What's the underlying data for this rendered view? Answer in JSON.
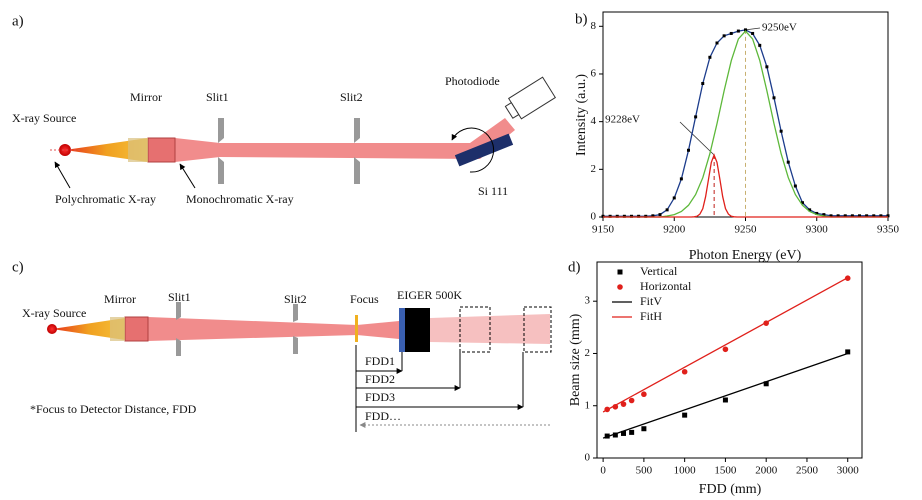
{
  "diagram": {
    "a": {
      "panel_label": "a)",
      "source": "X-ray Source",
      "mirror": "Mirror",
      "slit1": "Slit1",
      "slit2": "Slit2",
      "photodiode": "Photodiode",
      "poly": "Polychromatic X-ray",
      "mono": "Monochromatic X-ray",
      "crystal": "Si 111"
    },
    "c": {
      "panel_label": "c)",
      "source": "X-ray Source",
      "mirror": "Mirror",
      "slit1": "Slit1",
      "slit2": "Slit2",
      "focus": "Focus",
      "detector": "EIGER 500K",
      "fdd": [
        "FDD1",
        "FDD2",
        "FDD3",
        "FDD…"
      ],
      "note": "*Focus to Detector Distance,   FDD"
    }
  },
  "chart_data": [
    {
      "type": "line",
      "panel_label": "b)",
      "x_label": "Photon Energy (eV)",
      "y_label": "Intensity (a.u.)",
      "xlim": [
        9150,
        9350
      ],
      "xticks": [
        9150,
        9200,
        9250,
        9300,
        9350
      ],
      "ylim": [
        0,
        8.6
      ],
      "yticks": [
        0,
        2,
        4,
        6,
        8
      ],
      "series": [
        {
          "color": "#1c3c8c",
          "marker": "square",
          "marker_color": "#000000",
          "x": [
            9150,
            9155,
            9160,
            9165,
            9170,
            9175,
            9180,
            9185,
            9190,
            9195,
            9200,
            9205,
            9210,
            9215,
            9220,
            9225,
            9230,
            9235,
            9240,
            9245,
            9250,
            9255,
            9260,
            9265,
            9270,
            9275,
            9280,
            9285,
            9290,
            9295,
            9300,
            9305,
            9310,
            9315,
            9320,
            9325,
            9330,
            9335,
            9340,
            9345,
            9350
          ],
          "values": [
            0.03,
            0.03,
            0.03,
            0.03,
            0.03,
            0.03,
            0.03,
            0.05,
            0.1,
            0.3,
            0.8,
            1.6,
            2.8,
            4.2,
            5.6,
            6.7,
            7.3,
            7.6,
            7.7,
            7.8,
            7.85,
            7.7,
            7.2,
            6.3,
            5.0,
            3.6,
            2.3,
            1.3,
            0.6,
            0.3,
            0.15,
            0.1,
            0.05,
            0.05,
            0.05,
            0.05,
            0.05,
            0.05,
            0.05,
            0.05,
            0.05
          ]
        },
        {
          "color": "#5db83a",
          "x": [
            9150,
            9155,
            9160,
            9165,
            9170,
            9175,
            9180,
            9185,
            9190,
            9195,
            9200,
            9205,
            9210,
            9215,
            9220,
            9225,
            9230,
            9235,
            9240,
            9245,
            9250,
            9255,
            9260,
            9265,
            9270,
            9275,
            9280,
            9285,
            9290,
            9295,
            9300,
            9305,
            9310,
            9315,
            9320,
            9325,
            9330,
            9335,
            9340,
            9345,
            9350
          ],
          "values": [
            0,
            0,
            0,
            0,
            0,
            0,
            0,
            0,
            0,
            0.04,
            0.1,
            0.23,
            0.49,
            0.94,
            1.65,
            2.66,
            3.92,
            5.29,
            6.56,
            7.47,
            7.8,
            7.47,
            6.56,
            5.29,
            3.92,
            2.66,
            1.65,
            0.94,
            0.49,
            0.23,
            0.1,
            0.04,
            0,
            0,
            0,
            0,
            0,
            0,
            0,
            0,
            0
          ]
        },
        {
          "color": "#e0201b",
          "x": [
            9150,
            9212,
            9214,
            9216,
            9218,
            9220,
            9222,
            9224,
            9226,
            9228,
            9230,
            9232,
            9234,
            9236,
            9238,
            9240,
            9242,
            9244,
            9350
          ],
          "values": [
            0,
            0,
            0.01,
            0.03,
            0.12,
            0.35,
            0.85,
            1.58,
            2.29,
            2.6,
            2.29,
            1.58,
            0.85,
            0.35,
            0.12,
            0.03,
            0.01,
            0,
            0
          ]
        }
      ],
      "annotations": [
        {
          "text": "9228eV",
          "x": 9228,
          "y": 2.6,
          "color": "#c0201b"
        },
        {
          "text": "9250eV",
          "x": 9250,
          "y": 7.85,
          "color": "#c8b070"
        }
      ]
    },
    {
      "type": "scatter",
      "panel_label": "d)",
      "x_label": "FDD (mm)",
      "y_label": "Beam size (mm)",
      "xlim": [
        -75,
        3175
      ],
      "xticks": [
        0,
        500,
        1000,
        1500,
        2000,
        2500,
        3000
      ],
      "ylim": [
        0,
        3.75
      ],
      "yticks": [
        0,
        1,
        2,
        3
      ],
      "legend": "upper left",
      "series": [
        {
          "name": "Vertical",
          "color": "#000000",
          "marker": "square",
          "x": [
            50,
            150,
            250,
            350,
            500,
            1000,
            1500,
            2000,
            3000
          ],
          "values": [
            0.42,
            0.44,
            0.47,
            0.49,
            0.56,
            0.82,
            1.11,
            1.42,
            2.03
          ]
        },
        {
          "name": "Horizontal",
          "color": "#e0201b",
          "marker": "circle",
          "x": [
            50,
            150,
            250,
            350,
            500,
            1000,
            1500,
            2000,
            3000
          ],
          "values": [
            0.93,
            0.98,
            1.03,
            1.1,
            1.22,
            1.65,
            2.08,
            2.58,
            3.44
          ]
        },
        {
          "name": "FitV",
          "color": "#000000",
          "line": true,
          "x": [
            0,
            3000
          ],
          "values": [
            0.38,
            2.0
          ]
        },
        {
          "name": "FitH",
          "color": "#e0201b",
          "line": true,
          "x": [
            0,
            3000
          ],
          "values": [
            0.88,
            3.45
          ]
        }
      ]
    }
  ]
}
